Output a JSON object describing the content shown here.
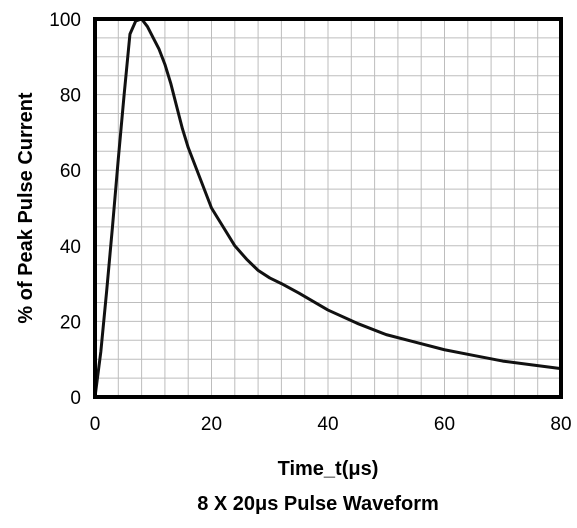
{
  "chart_data": {
    "type": "line",
    "title": "",
    "caption": "8 X 20μs Pulse Waveform",
    "xlabel": "Time_t(μs)",
    "ylabel": "% of Peak Pulse Current",
    "xlim": [
      0,
      80
    ],
    "ylim": [
      0,
      100
    ],
    "x_ticks": [
      "0",
      "20",
      "40",
      "60",
      "80"
    ],
    "y_ticks": [
      "0",
      "20",
      "40",
      "60",
      "80",
      "100"
    ],
    "grid": true,
    "minor_x_step": 4,
    "minor_y_step": 5,
    "legend": "none",
    "line_color": "#111111",
    "grid_color": "#bdbdbd",
    "series": [
      {
        "x": [
          0,
          1,
          2,
          3,
          4,
          5,
          6,
          7,
          8,
          9,
          10,
          11,
          12,
          13,
          14,
          15,
          16,
          18,
          20,
          22,
          24,
          26,
          28,
          30,
          32,
          35,
          40,
          45,
          50,
          55,
          60,
          65,
          70,
          75,
          80
        ],
        "values": [
          0,
          12,
          28,
          45,
          63,
          80,
          96,
          99.5,
          100,
          98,
          95,
          92,
          88,
          83,
          77,
          71,
          66,
          58,
          50,
          45,
          40,
          36.5,
          33.5,
          31.5,
          30,
          27.5,
          23,
          19.5,
          16.5,
          14.5,
          12.5,
          11,
          9.5,
          8.5,
          7.5
        ]
      }
    ]
  }
}
